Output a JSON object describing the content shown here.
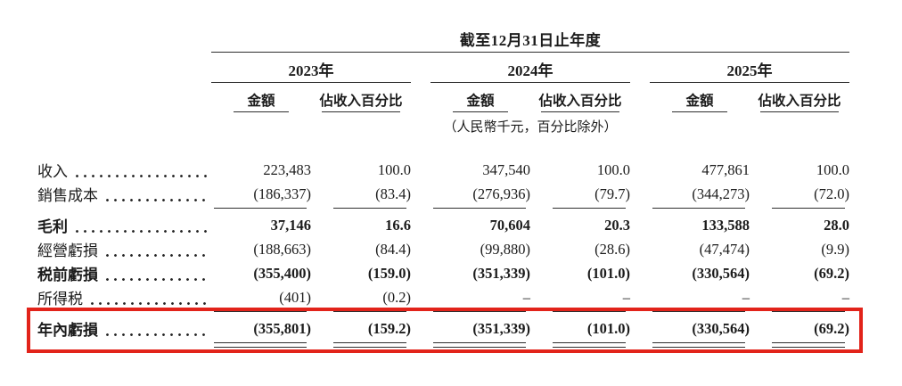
{
  "table": {
    "title": "截至12月31日止年度",
    "unit_note": "（人民幣千元，百分比除外）",
    "year_groups": [
      {
        "year": "2023年",
        "amount_label": "金額",
        "pct_label": "佔收入百分比"
      },
      {
        "year": "2024年",
        "amount_label": "金額",
        "pct_label": "佔收入百分比"
      },
      {
        "year": "2025年",
        "amount_label": "金額",
        "pct_label": "佔收入百分比"
      }
    ],
    "rows": [
      {
        "label": "收入",
        "bold": false,
        "values": [
          "223,483",
          "100.0",
          "347,540",
          "100.0",
          "477,861",
          "100.0"
        ]
      },
      {
        "label": "銷售成本",
        "bold": false,
        "values": [
          "(186,337)",
          "(83.4)",
          "(276,936)",
          "(79.7)",
          "(344,273)",
          "(72.0)"
        ],
        "rule_after": true
      },
      {
        "label": "毛利",
        "bold": true,
        "values": [
          "37,146",
          "16.6",
          "70,604",
          "20.3",
          "133,588",
          "28.0"
        ]
      },
      {
        "label": "經營虧損",
        "bold": false,
        "values": [
          "(188,663)",
          "(84.4)",
          "(99,880)",
          "(28.6)",
          "(47,474)",
          "(9.9)"
        ]
      },
      {
        "label": "税前虧損",
        "bold": true,
        "values": [
          "(355,400)",
          "(159.0)",
          "(351,339)",
          "(101.0)",
          "(330,564)",
          "(69.2)"
        ]
      },
      {
        "label": "所得税",
        "bold": false,
        "values": [
          "(401)",
          "(0.2)",
          "–",
          "–",
          "–",
          "–"
        ],
        "rule_after": true
      },
      {
        "label": "年內虧損",
        "bold": true,
        "values": [
          "(355,801)",
          "(159.2)",
          "(351,339)",
          "(101.0)",
          "(330,564)",
          "(69.2)"
        ],
        "double_rule_after": true,
        "highlighted": true
      }
    ],
    "highlight_color": "#e2231a"
  }
}
